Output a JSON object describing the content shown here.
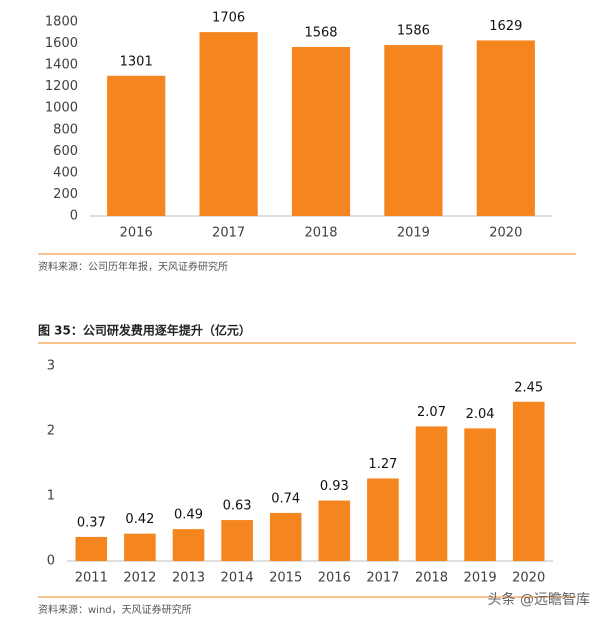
{
  "chart_data": [
    {
      "type": "bar",
      "categories": [
        "2016",
        "2017",
        "2018",
        "2019",
        "2020"
      ],
      "values": [
        1301,
        1706,
        1568,
        1586,
        1629
      ],
      "color": "#f5861f",
      "ylim": [
        0,
        1800
      ],
      "yticks": [
        0,
        200,
        400,
        600,
        800,
        1000,
        1200,
        1400,
        1600,
        1800
      ],
      "source": "资料来源：公司历年年报，天风证券研究所"
    },
    {
      "type": "bar",
      "title": "图 35：公司研发费用逐年提升（亿元）",
      "categories": [
        "2011",
        "2012",
        "2013",
        "2014",
        "2015",
        "2016",
        "2017",
        "2018",
        "2019",
        "2020"
      ],
      "values": [
        0.37,
        0.42,
        0.49,
        0.63,
        0.74,
        0.93,
        1.27,
        2.07,
        2.04,
        2.45
      ],
      "color": "#f5861f",
      "ylim": [
        0,
        3
      ],
      "yticks": [
        0,
        1,
        2,
        3
      ],
      "source": "资料来源：wind，天风证券研究所"
    }
  ],
  "watermark": "头条 @远瞻智库"
}
